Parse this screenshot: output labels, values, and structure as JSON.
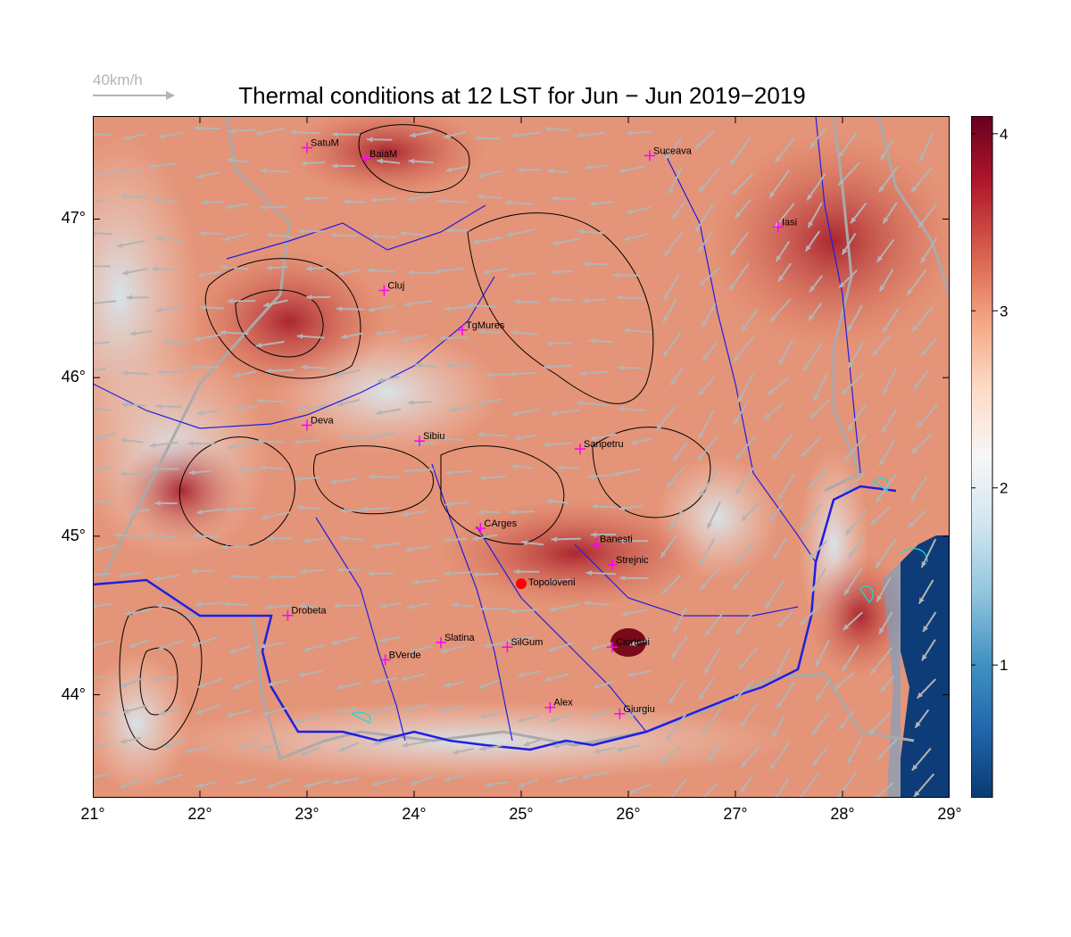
{
  "title": "Thermal conditions at 12 LST for Jun − Jun  2019−2019",
  "wind_reference": {
    "label": "40km/h",
    "color": "#b4b4b4"
  },
  "map": {
    "x_ticks": [
      "21°",
      "22°",
      "23°",
      "24°",
      "25°",
      "26°",
      "27°",
      "28°",
      "29°"
    ],
    "y_ticks": [
      "44°",
      "45°",
      "46°",
      "47°"
    ],
    "lon_range": [
      21,
      29
    ],
    "lat_range": [
      43.35,
      47.65
    ],
    "cities": [
      {
        "name": "SatuM",
        "lon": 23.0,
        "lat": 47.45
      },
      {
        "name": "BaiaM",
        "lon": 23.55,
        "lat": 47.38
      },
      {
        "name": "Suceava",
        "lon": 26.2,
        "lat": 47.4
      },
      {
        "name": "Iasi",
        "lon": 27.4,
        "lat": 46.95
      },
      {
        "name": "Cluj",
        "lon": 23.72,
        "lat": 46.55
      },
      {
        "name": "TgMures",
        "lon": 24.45,
        "lat": 46.3
      },
      {
        "name": "Deva",
        "lon": 23.0,
        "lat": 45.7
      },
      {
        "name": "Sibiu",
        "lon": 24.05,
        "lat": 45.6
      },
      {
        "name": "Sanpetru",
        "lon": 25.55,
        "lat": 45.55
      },
      {
        "name": "CArges",
        "lon": 24.62,
        "lat": 45.05
      },
      {
        "name": "Banesti",
        "lon": 25.7,
        "lat": 44.95
      },
      {
        "name": "Strejnic",
        "lon": 25.85,
        "lat": 44.82
      },
      {
        "name": "Drobeta",
        "lon": 22.82,
        "lat": 44.5
      },
      {
        "name": "Slatina",
        "lon": 24.25,
        "lat": 44.33
      },
      {
        "name": "SilGum",
        "lon": 24.87,
        "lat": 44.3
      },
      {
        "name": "Ciorteni",
        "lon": 25.85,
        "lat": 44.3
      },
      {
        "name": "BVerde",
        "lon": 23.73,
        "lat": 44.22
      },
      {
        "name": "Alex",
        "lon": 25.27,
        "lat": 43.92
      },
      {
        "name": "Giurgiu",
        "lon": 25.92,
        "lat": 43.88
      }
    ],
    "highlight_site": {
      "name": "Topoloveni",
      "lon": 25.0,
      "lat": 44.7
    },
    "colors": {
      "city_marker": "#ff00ff",
      "highlight": "#ff0000",
      "wind_arrow": "#b4b4b4",
      "rivers": "#1e1ee6",
      "contours": "#000000",
      "border": "#aaaaaa"
    }
  },
  "colorbar": {
    "tick_labels": [
      "1",
      "2",
      "3",
      "4"
    ],
    "ticks": [
      1,
      2,
      3,
      4
    ],
    "range": [
      0.25,
      4.1
    ],
    "colors": [
      "#0a3a70",
      "#2166ac",
      "#4393c3",
      "#92c5de",
      "#d1e5f0",
      "#f7f7f7",
      "#fddbc7",
      "#f4a582",
      "#d6604d",
      "#b2182b",
      "#67001f"
    ]
  }
}
